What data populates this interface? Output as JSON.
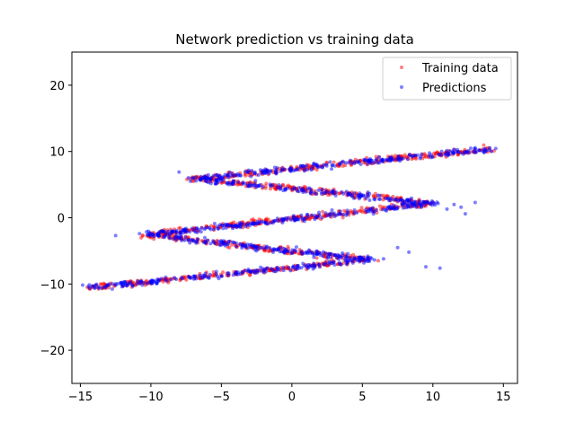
{
  "chart_data": {
    "type": "scatter",
    "title": "Network prediction vs training data",
    "xlabel": "",
    "ylabel": "",
    "xlim": [
      -15.6,
      16.0
    ],
    "ylim": [
      -25,
      25
    ],
    "xticks": [
      -15,
      -10,
      -5,
      0,
      5,
      10,
      15
    ],
    "yticks": [
      -20,
      -10,
      0,
      10,
      20
    ],
    "grid": false,
    "legend_position": "top-right",
    "series": [
      {
        "name": "Training data",
        "color": "#ff0000",
        "alpha": 0.5,
        "pattern": "zigzag band y from -10 to 10, x = 15*sin(0.75*y)/... + 0.7*y (approximated)"
      },
      {
        "name": "Predictions",
        "color": "#0000ff",
        "alpha": 0.5
      }
    ],
    "curve": {
      "y_range": [
        -10.5,
        10.4
      ],
      "outliers": [
        [
          -12.5,
          -2.7
        ],
        [
          -8.0,
          6.9
        ],
        [
          7.5,
          -4.5
        ],
        [
          8.3,
          -5.2
        ],
        [
          9.5,
          -7.4
        ],
        [
          10.5,
          -7.6
        ],
        [
          11.5,
          2.0
        ],
        [
          12.0,
          1.6
        ],
        [
          12.3,
          0.6
        ],
        [
          13.0,
          2.3
        ],
        [
          11.0,
          1.3
        ],
        [
          -10.8,
          -2.4
        ],
        [
          6.5,
          -6.2
        ]
      ]
    }
  }
}
